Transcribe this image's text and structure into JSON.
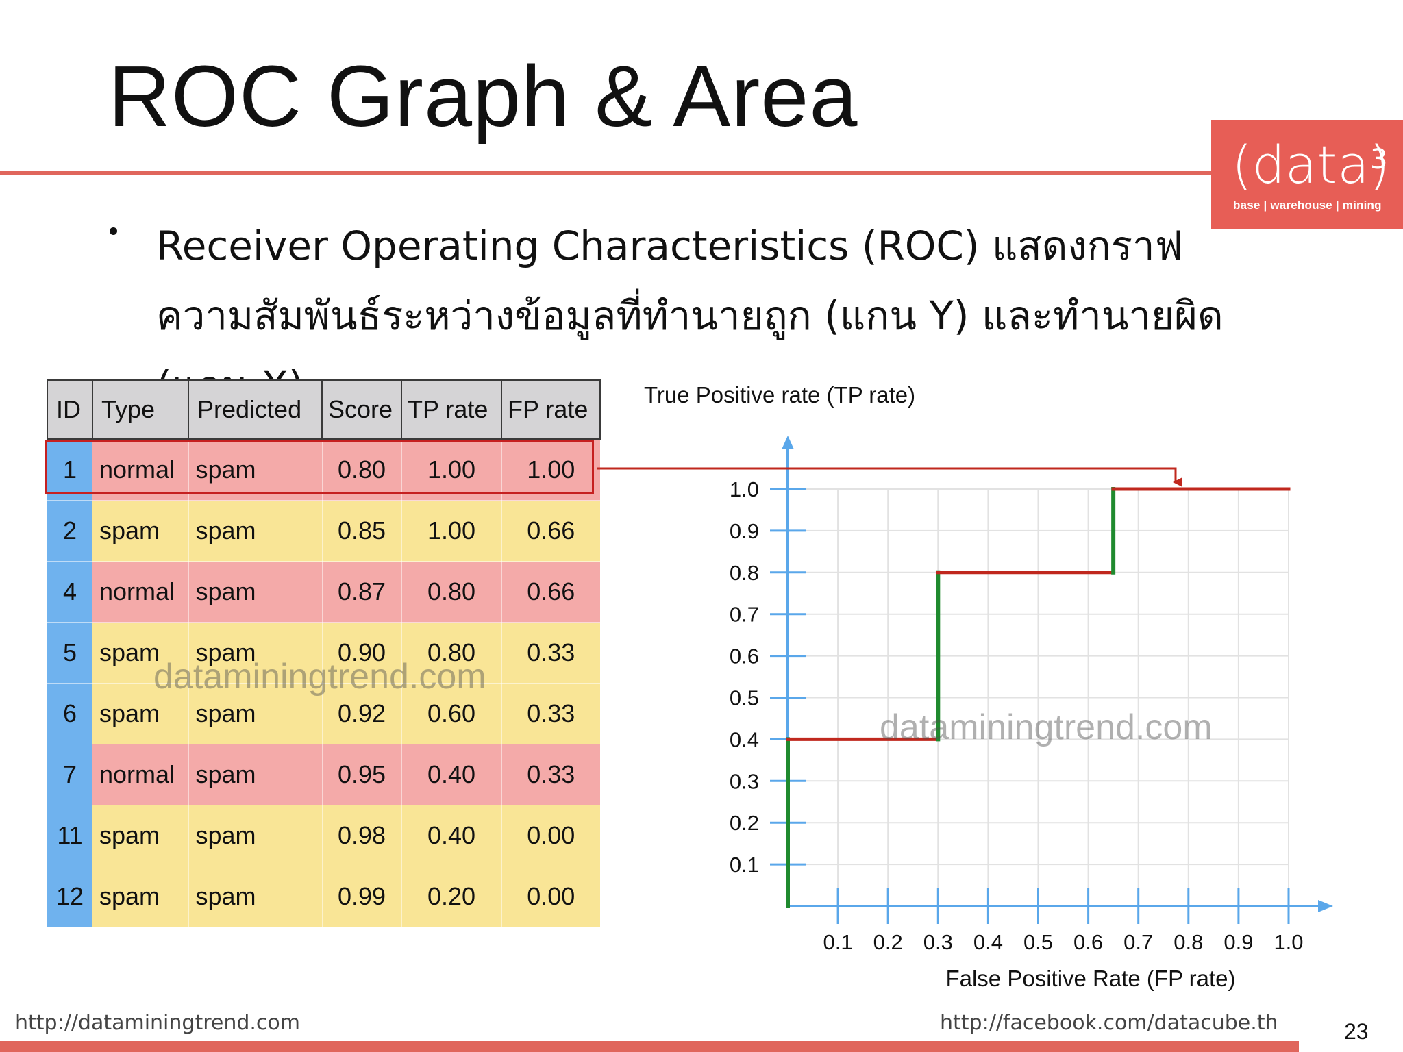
{
  "slide": {
    "title": "ROC Graph & Area",
    "bullet": "Receiver Operating Characteristics (ROC) แสดงกราฟความสัมพันธ์ระหว่างข้อมูลที่ทำนายถูก (แกน Y) และทำนายผิด (แกน X)",
    "page_number": "23"
  },
  "logo": {
    "main": "(data)",
    "sup": "3",
    "sub": "base | warehouse | mining",
    "bg_color": "#e75e56"
  },
  "table": {
    "headers": [
      "ID",
      "Type",
      "Predicted",
      "Score",
      "TP rate",
      "FP rate"
    ],
    "rows": [
      {
        "id": "1",
        "type": "normal",
        "predicted": "spam",
        "score": "0.80",
        "tp": "1.00",
        "fp": "1.00",
        "color": "pink",
        "highlighted": true
      },
      {
        "id": "2",
        "type": "spam",
        "predicted": "spam",
        "score": "0.85",
        "tp": "1.00",
        "fp": "0.66",
        "color": "yellow"
      },
      {
        "id": "4",
        "type": "normal",
        "predicted": "spam",
        "score": "0.87",
        "tp": "0.80",
        "fp": "0.66",
        "color": "pink"
      },
      {
        "id": "5",
        "type": "spam",
        "predicted": "spam",
        "score": "0.90",
        "tp": "0.80",
        "fp": "0.33",
        "color": "yellow"
      },
      {
        "id": "6",
        "type": "spam",
        "predicted": "spam",
        "score": "0.92",
        "tp": "0.60",
        "fp": "0.33",
        "color": "yellow"
      },
      {
        "id": "7",
        "type": "normal",
        "predicted": "spam",
        "score": "0.95",
        "tp": "0.40",
        "fp": "0.33",
        "color": "pink"
      },
      {
        "id": "11",
        "type": "spam",
        "predicted": "spam",
        "score": "0.98",
        "tp": "0.40",
        "fp": "0.00",
        "color": "yellow"
      },
      {
        "id": "12",
        "type": "spam",
        "predicted": "spam",
        "score": "0.99",
        "tp": "0.20",
        "fp": "0.00",
        "color": "yellow"
      }
    ]
  },
  "watermark": "dataminingtrend.com",
  "chart_data": {
    "type": "line",
    "title": "",
    "ylabel": "True Positive rate (TP rate)",
    "xlabel": "False Positive Rate (FP rate)",
    "xlim": [
      0,
      1.0
    ],
    "ylim": [
      0,
      1.0
    ],
    "x_ticks": [
      "0.1",
      "0.2",
      "0.3",
      "0.4",
      "0.5",
      "0.6",
      "0.7",
      "0.8",
      "0.9",
      "1.0"
    ],
    "y_ticks": [
      "0.1",
      "0.2",
      "0.3",
      "0.4",
      "0.5",
      "0.6",
      "0.7",
      "0.8",
      "0.9",
      "1.0"
    ],
    "grid": true,
    "series": [
      {
        "type": "step",
        "points": [
          [
            0,
            0
          ],
          [
            0,
            0.4
          ],
          [
            0.3,
            0.4
          ],
          [
            0.3,
            0.8
          ],
          [
            0.65,
            0.8
          ],
          [
            0.65,
            1.0
          ],
          [
            1.0,
            1.0
          ]
        ],
        "horizontal_color": "#c0281e",
        "vertical_color": "#1f8a2e"
      }
    ],
    "axis_color": "#5aa7ea"
  },
  "footer": {
    "left": "http://dataminingtrend.com",
    "right": "http://facebook.com/datacube.th"
  }
}
